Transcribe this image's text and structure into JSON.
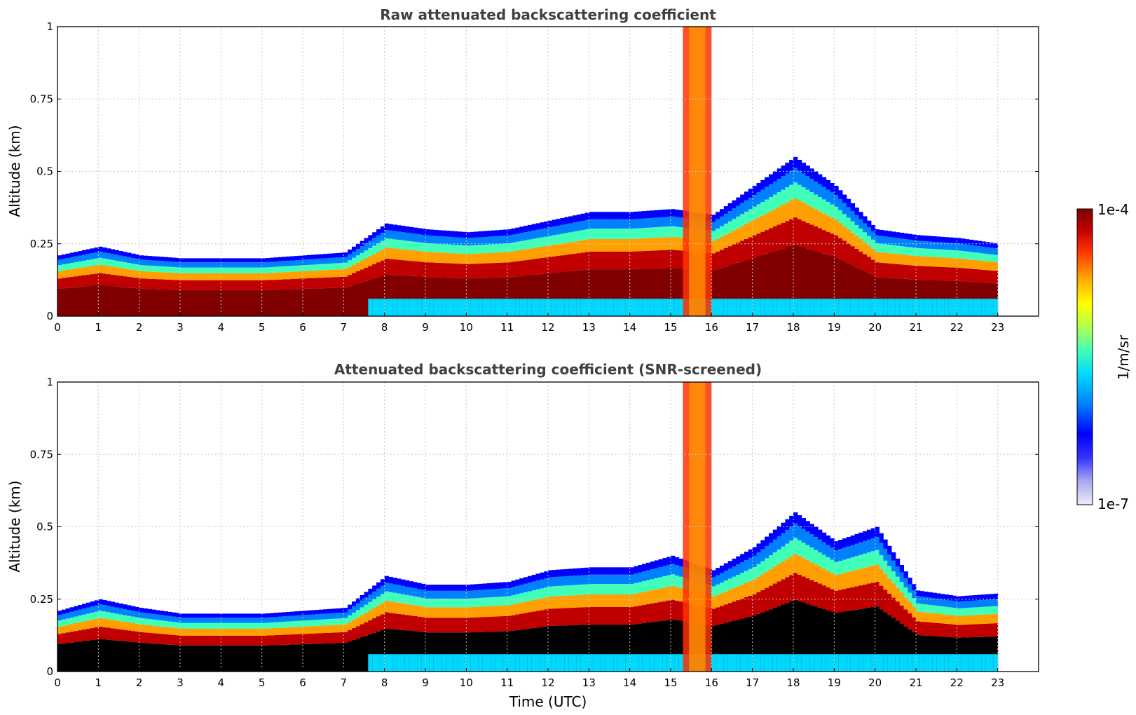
{
  "chart_data": [
    {
      "type": "heatmap",
      "title": "Raw attenuated backscattering coefficient",
      "xlabel": "",
      "ylabel": "Altitude (km)",
      "xlim": [
        0,
        24
      ],
      "ylim": [
        0,
        1
      ],
      "xticks": [
        "0",
        "1",
        "2",
        "3",
        "4",
        "5",
        "6",
        "7",
        "8",
        "9",
        "10",
        "11",
        "12",
        "13",
        "14",
        "15",
        "16",
        "17",
        "18",
        "19",
        "20",
        "21",
        "22",
        "23"
      ],
      "yticks": [
        "0",
        "0.25",
        "0.5",
        "0.75",
        "1"
      ],
      "grid": true,
      "data_end_hour": 23,
      "boundary_layer_top_km": [
        [
          0,
          0.21
        ],
        [
          1,
          0.24
        ],
        [
          2,
          0.21
        ],
        [
          3,
          0.2
        ],
        [
          4,
          0.2
        ],
        [
          5,
          0.2
        ],
        [
          6,
          0.21
        ],
        [
          7,
          0.22
        ],
        [
          8,
          0.32
        ],
        [
          9,
          0.3
        ],
        [
          10,
          0.29
        ],
        [
          11,
          0.3
        ],
        [
          12,
          0.33
        ],
        [
          13,
          0.36
        ],
        [
          14,
          0.36
        ],
        [
          15,
          0.37
        ],
        [
          16,
          0.35
        ],
        [
          17,
          0.45
        ],
        [
          18,
          0.55
        ],
        [
          19,
          0.45
        ],
        [
          20,
          0.3
        ],
        [
          21,
          0.28
        ],
        [
          22,
          0.27
        ],
        [
          23,
          0.25
        ]
      ]
    },
    {
      "type": "heatmap",
      "title": "Attenuated backscattering coefficient (SNR-screened)",
      "xlabel": "Time (UTC)",
      "ylabel": "Altitude (km)",
      "xlim": [
        0,
        24
      ],
      "ylim": [
        0,
        1
      ],
      "xticks": [
        "0",
        "1",
        "2",
        "3",
        "4",
        "5",
        "6",
        "7",
        "8",
        "9",
        "10",
        "11",
        "12",
        "13",
        "14",
        "15",
        "16",
        "17",
        "18",
        "19",
        "20",
        "21",
        "22",
        "23"
      ],
      "yticks": [
        "0",
        "0.25",
        "0.5",
        "0.75",
        "1"
      ],
      "grid": true,
      "data_end_hour": 23,
      "boundary_layer_top_km": [
        [
          0,
          0.21
        ],
        [
          1,
          0.25
        ],
        [
          2,
          0.22
        ],
        [
          3,
          0.2
        ],
        [
          4,
          0.2
        ],
        [
          5,
          0.2
        ],
        [
          6,
          0.21
        ],
        [
          7,
          0.22
        ],
        [
          8,
          0.33
        ],
        [
          9,
          0.3
        ],
        [
          10,
          0.3
        ],
        [
          11,
          0.31
        ],
        [
          12,
          0.35
        ],
        [
          13,
          0.36
        ],
        [
          14,
          0.36
        ],
        [
          15,
          0.4
        ],
        [
          16,
          0.35
        ],
        [
          17,
          0.43
        ],
        [
          18,
          0.55
        ],
        [
          19,
          0.45
        ],
        [
          20,
          0.5
        ],
        [
          21,
          0.28
        ],
        [
          22,
          0.26
        ],
        [
          23,
          0.27
        ]
      ]
    }
  ],
  "colorbar": {
    "label": "1/m/sr",
    "max_label": "1e-4",
    "min_label": "1e-7",
    "scale": "log",
    "colormap": "jet",
    "colors": [
      "#ececfa",
      "#a8a8f0",
      "#3232ff",
      "#0000ff",
      "#0080ff",
      "#00d8ff",
      "#40ffb8",
      "#b0ff50",
      "#ffff00",
      "#ffa000",
      "#ff3000",
      "#c00000",
      "#800000"
    ]
  }
}
